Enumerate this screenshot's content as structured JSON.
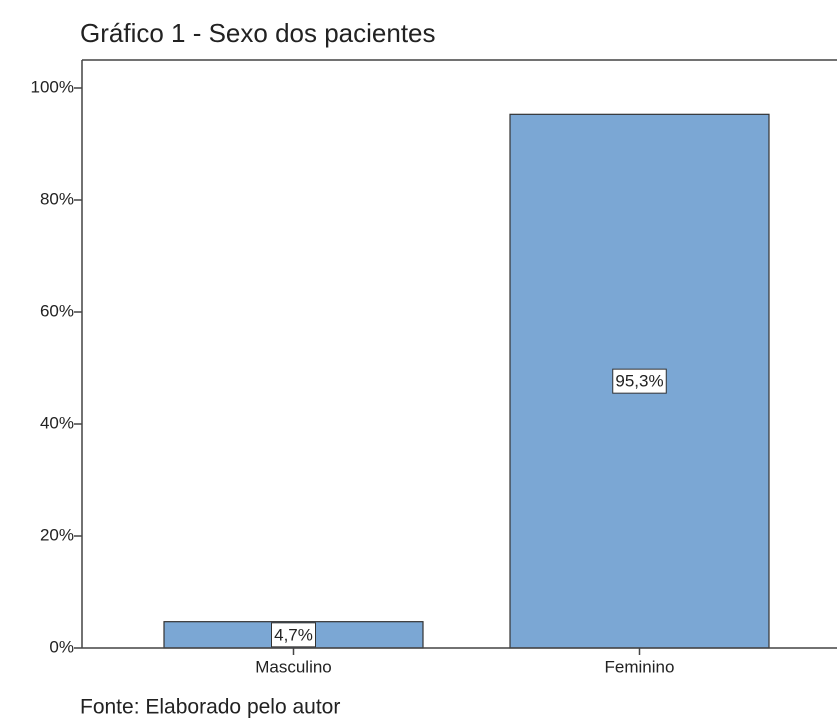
{
  "chart_data": {
    "type": "bar",
    "title": "Gráfico 1 - Sexo dos pacientes",
    "categories": [
      "Masculino",
      "Feminino"
    ],
    "values": [
      4.7,
      95.3
    ],
    "value_labels": [
      "4,7%",
      "95,3%"
    ],
    "color": "#7ba7d4",
    "ylim": [
      0,
      105
    ],
    "yticks": [
      {
        "value": 0,
        "label": "0%"
      },
      {
        "value": 20,
        "label": "20%"
      },
      {
        "value": 40,
        "label": "40%"
      },
      {
        "value": 60,
        "label": "60%"
      },
      {
        "value": 80,
        "label": "80%"
      },
      {
        "value": 100,
        "label": "100%"
      }
    ],
    "source": "Fonte: Elaborado pelo autor"
  }
}
